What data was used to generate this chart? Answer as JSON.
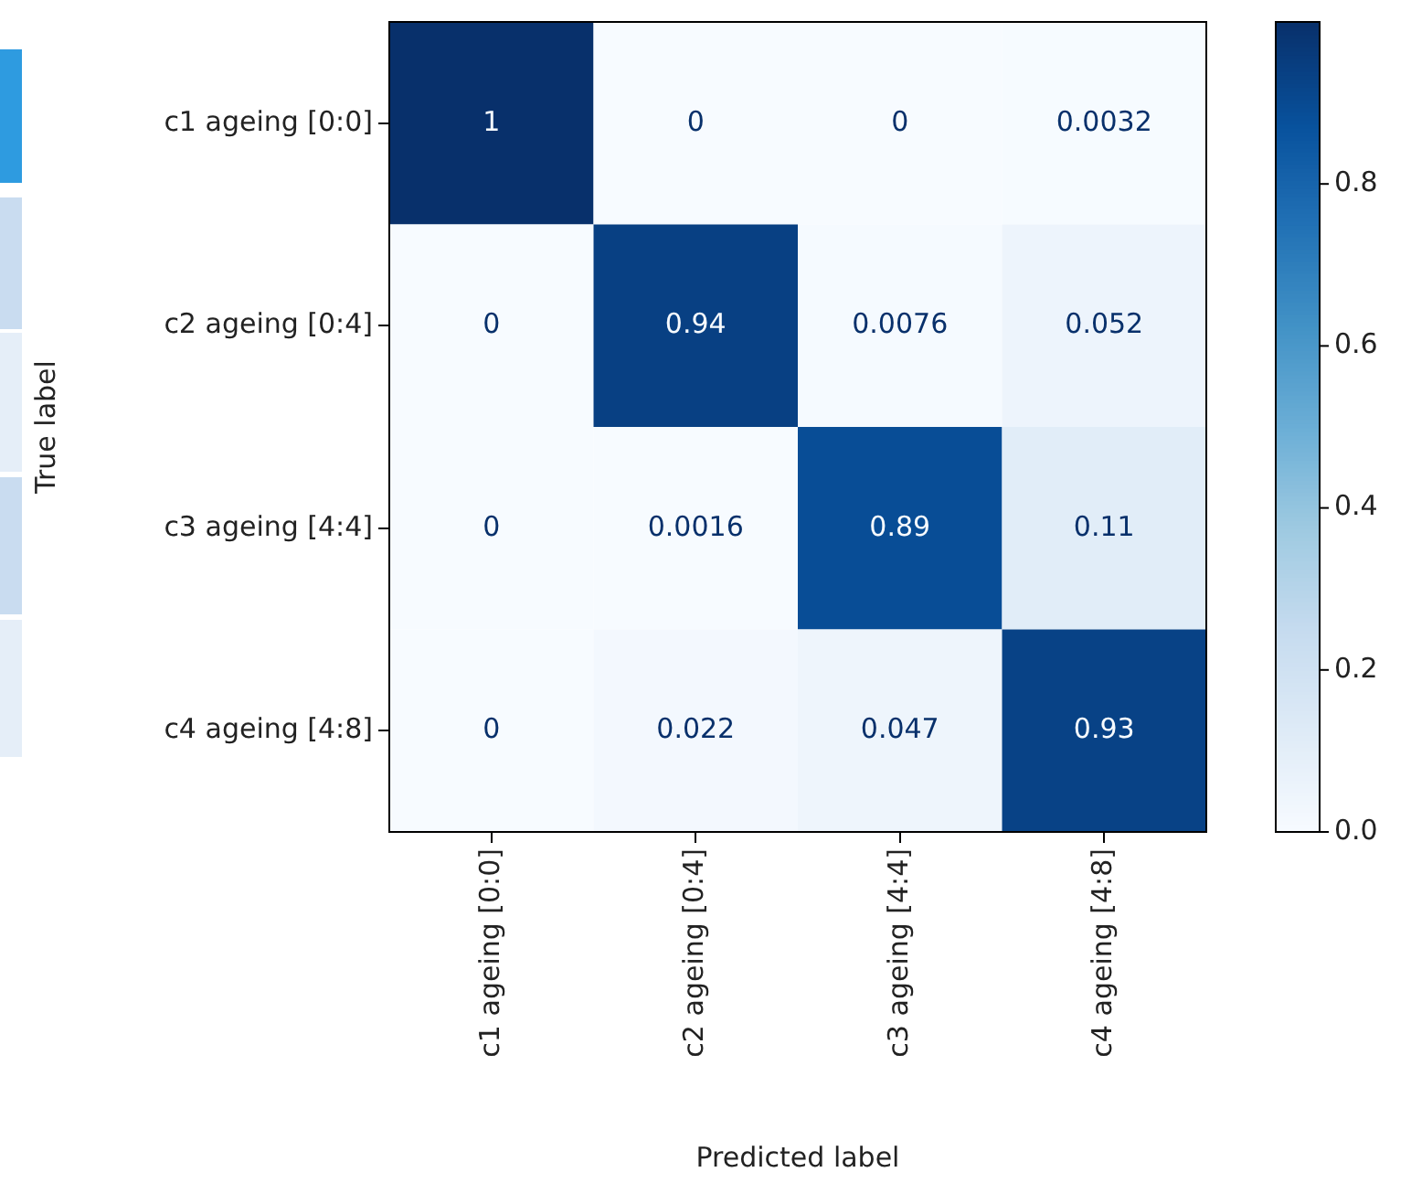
{
  "chart_data": {
    "type": "heatmap",
    "xlabel": "Predicted label",
    "ylabel": "True label",
    "categories": [
      "c1 ageing [0:0]",
      "c2 ageing [0:4]",
      "c3 ageing [4:4]",
      "c4 ageing [4:8]"
    ],
    "y_categories": [
      "c1 ageing [0:0]",
      "c2 ageing [0:4]",
      "c3 ageing [4:4]",
      "c4 ageing [4:8]"
    ],
    "cells": [
      [
        1,
        0,
        0,
        0.0032
      ],
      [
        0,
        0.94,
        0.0076,
        0.052
      ],
      [
        0,
        0.0016,
        0.89,
        0.11
      ],
      [
        0,
        0.022,
        0.047,
        0.93
      ]
    ],
    "data_labels": true,
    "clim": [
      0,
      1
    ],
    "cticks": [
      {
        "value": 0,
        "label": "0.0"
      },
      0.2,
      0.4,
      0.6,
      0.8
    ]
  }
}
